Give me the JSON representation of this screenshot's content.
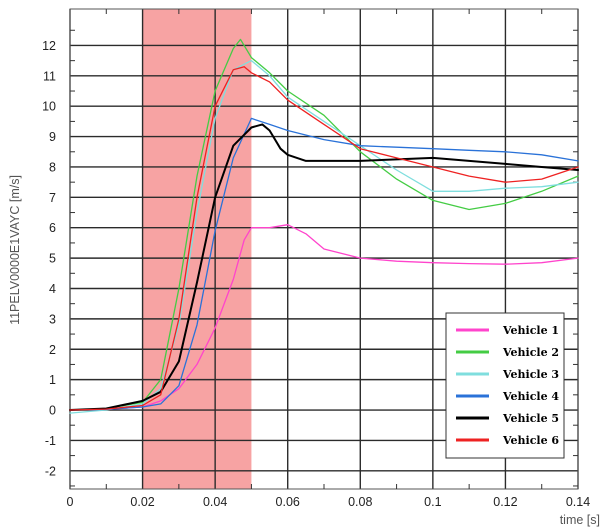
{
  "chart_data": {
    "type": "line",
    "title": "",
    "xlabel": "time [s]",
    "ylabel": "11PELV0000E1VAYC [m/s]",
    "xlim": [
      0,
      0.14
    ],
    "ylim": [
      -2.6,
      13.2
    ],
    "x_ticks": [
      0,
      0.02,
      0.04,
      0.06,
      0.08,
      0.1,
      0.12,
      0.14
    ],
    "x_tick_labels": [
      "0",
      "0.02",
      "0.04",
      "0.06",
      "0.08",
      "0.1",
      "0.12",
      "0.14"
    ],
    "y_ticks": [
      -2,
      -1,
      0,
      1,
      2,
      3,
      4,
      5,
      6,
      7,
      8,
      9,
      10,
      11,
      12
    ],
    "y_tick_labels": [
      "-2",
      "-1",
      "0",
      "1",
      "2",
      "3",
      "4",
      "5",
      "6",
      "7",
      "8",
      "9",
      "10",
      "11",
      "12"
    ],
    "grid": true,
    "legend_position": "bottom-right",
    "highlight_band": {
      "x_start": 0.02,
      "x_end": 0.05,
      "color": "#f7a3a3"
    },
    "series": [
      {
        "name": "Vehicle 1",
        "color": "#ff44cc",
        "x": [
          0,
          0.01,
          0.02,
          0.025,
          0.03,
          0.035,
          0.04,
          0.045,
          0.048,
          0.05,
          0.055,
          0.06,
          0.065,
          0.07,
          0.08,
          0.09,
          0.1,
          0.11,
          0.12,
          0.13,
          0.14
        ],
        "y": [
          0,
          0.02,
          0.1,
          0.3,
          0.7,
          1.5,
          2.7,
          4.3,
          5.6,
          6.0,
          6.0,
          6.1,
          5.8,
          5.3,
          5.0,
          4.9,
          4.85,
          4.82,
          4.8,
          4.85,
          5.0
        ]
      },
      {
        "name": "Vehicle 2",
        "color": "#44cc44",
        "x": [
          0,
          0.01,
          0.02,
          0.025,
          0.03,
          0.035,
          0.04,
          0.045,
          0.047,
          0.05,
          0.055,
          0.06,
          0.07,
          0.08,
          0.09,
          0.1,
          0.11,
          0.12,
          0.13,
          0.14
        ],
        "y": [
          0,
          0.05,
          0.25,
          1.0,
          4.0,
          7.7,
          10.5,
          11.9,
          12.2,
          11.6,
          11.1,
          10.5,
          9.7,
          8.5,
          7.6,
          6.9,
          6.6,
          6.8,
          7.2,
          7.7
        ]
      },
      {
        "name": "Vehicle 3",
        "color": "#7fdede",
        "x": [
          0,
          0.01,
          0.02,
          0.025,
          0.03,
          0.035,
          0.04,
          0.045,
          0.05,
          0.055,
          0.06,
          0.07,
          0.08,
          0.09,
          0.1,
          0.11,
          0.12,
          0.13,
          0.14
        ],
        "y": [
          -0.1,
          0.0,
          0.2,
          0.7,
          2.8,
          6.5,
          9.6,
          11.2,
          11.5,
          11.0,
          10.3,
          9.5,
          8.7,
          7.9,
          7.2,
          7.2,
          7.3,
          7.35,
          7.5
        ]
      },
      {
        "name": "Vehicle 4",
        "color": "#2a72d8",
        "x": [
          0,
          0.01,
          0.02,
          0.025,
          0.03,
          0.035,
          0.04,
          0.045,
          0.05,
          0.055,
          0.06,
          0.07,
          0.08,
          0.09,
          0.1,
          0.11,
          0.12,
          0.13,
          0.14
        ],
        "y": [
          0,
          0.02,
          0.1,
          0.2,
          0.8,
          2.8,
          5.9,
          8.3,
          9.6,
          9.4,
          9.2,
          8.9,
          8.7,
          8.65,
          8.6,
          8.55,
          8.5,
          8.4,
          8.2
        ]
      },
      {
        "name": "Vehicle 5",
        "color": "#000000",
        "x": [
          0,
          0.01,
          0.02,
          0.025,
          0.03,
          0.035,
          0.04,
          0.045,
          0.05,
          0.053,
          0.055,
          0.058,
          0.06,
          0.065,
          0.07,
          0.08,
          0.09,
          0.1,
          0.11,
          0.12,
          0.13,
          0.14
        ],
        "y": [
          0,
          0.05,
          0.3,
          0.6,
          1.6,
          4.2,
          7.0,
          8.7,
          9.3,
          9.4,
          9.2,
          8.6,
          8.4,
          8.2,
          8.2,
          8.2,
          8.25,
          8.3,
          8.2,
          8.1,
          8.0,
          7.9
        ]
      },
      {
        "name": "Vehicle 6",
        "color": "#ee2222",
        "x": [
          0,
          0.01,
          0.02,
          0.025,
          0.03,
          0.035,
          0.04,
          0.045,
          0.048,
          0.05,
          0.055,
          0.06,
          0.07,
          0.08,
          0.09,
          0.1,
          0.11,
          0.12,
          0.13,
          0.14
        ],
        "y": [
          0,
          0.03,
          0.15,
          0.5,
          3.0,
          7.0,
          10.0,
          11.2,
          11.3,
          11.1,
          10.8,
          10.2,
          9.4,
          8.6,
          8.3,
          8.0,
          7.7,
          7.5,
          7.6,
          8.0
        ]
      }
    ]
  }
}
